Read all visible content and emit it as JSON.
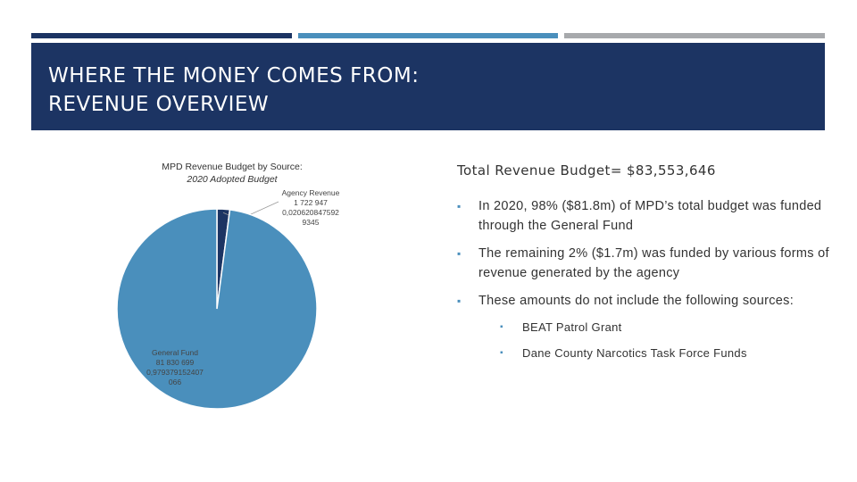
{
  "slide": {
    "title_line1": "WHERE THE MONEY COMES FROM:",
    "title_line2": "REVENUE OVERVIEW",
    "colors": {
      "dark_navy": "#1c3463",
      "accent_blue": "#4a8fbc",
      "gray": "#a7a9ac"
    }
  },
  "chart_data": {
    "type": "pie",
    "title": "MPD Revenue Budget by Source:",
    "subtitle": "2020 Adopted Budget",
    "slices": [
      {
        "name": "General Fund",
        "value": 81830699,
        "fraction": 0.979379152407066,
        "fraction_text": "0,979379152407",
        "fraction_tail": "066",
        "value_text": "81 830 699",
        "color": "#4a8fbc"
      },
      {
        "name": "Agency Revenue",
        "value": 1722947,
        "fraction": 0.0206208475929345,
        "fraction_text": "0,020620847592",
        "fraction_tail": "9345",
        "value_text": "1 722 947",
        "color": "#1c3463"
      }
    ]
  },
  "content": {
    "total": "Total Revenue Budget= $83,553,646",
    "bullets": [
      "In 2020, 98% ($81.8m) of MPD’s total budget was funded through the General Fund",
      "The remaining 2% ($1.7m) was funded by various forms of revenue generated by the agency",
      "These amounts do not include the following sources:"
    ],
    "sub_bullets": [
      "BEAT Patrol Grant",
      "Dane County Narcotics Task Force Funds"
    ]
  }
}
